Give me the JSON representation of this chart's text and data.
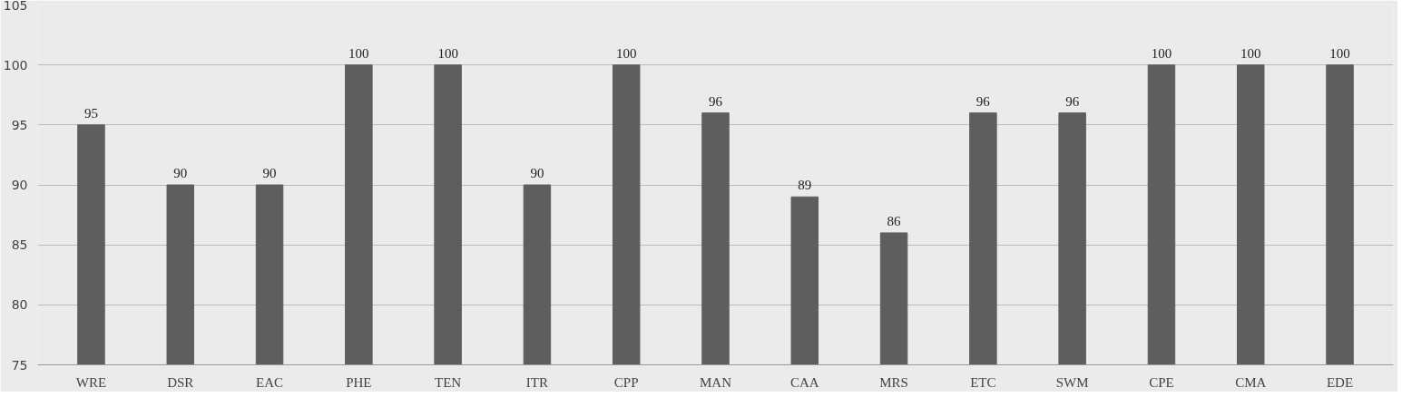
{
  "chart_data": {
    "type": "bar",
    "categories": [
      "WRE",
      "DSR",
      "EAC",
      "PHE",
      "TEN",
      "ITR",
      "CPP",
      "MAN",
      "CAA",
      "MRS",
      "ETC",
      "SWM",
      "CPE",
      "CMA",
      "EDE"
    ],
    "values": [
      95,
      90,
      90,
      100,
      100,
      90,
      100,
      96,
      89,
      86,
      96,
      96,
      100,
      100,
      100
    ],
    "color": "#5e5e5e",
    "ylim": [
      75,
      105
    ],
    "yticks": [
      75,
      80,
      85,
      90,
      95,
      100,
      105
    ],
    "grid": "y",
    "data_labels": true
  }
}
